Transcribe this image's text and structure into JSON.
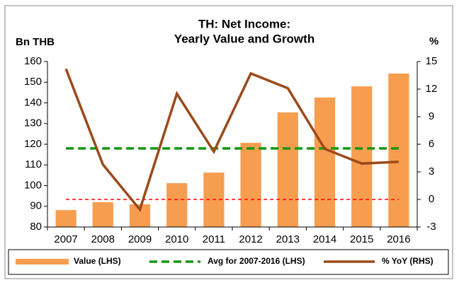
{
  "chart_data": {
    "type": "bar_line",
    "title": [
      "TH: Net Income:",
      "Yearly Value and Growth"
    ],
    "y_label": "Bn THB",
    "y2_label": "%",
    "categories": [
      "2007",
      "2008",
      "2009",
      "2010",
      "2011",
      "2012",
      "2013",
      "2014",
      "2015",
      "2016"
    ],
    "series": [
      {
        "name": "Value (LHS)",
        "type": "bar",
        "axis": "y",
        "color": "#f79d50",
        "values": [
          88.2,
          92,
          91,
          101.2,
          106.3,
          120.7,
          135.4,
          142.6,
          148,
          154.2
        ]
      },
      {
        "name": "Avg for 2007-2016 (LHS)",
        "type": "dashed-line",
        "axis": "y",
        "color": "#109810",
        "values": [
          118,
          118,
          118,
          118,
          118,
          118,
          118,
          118,
          118,
          118
        ]
      },
      {
        "name": "% YoY (RHS)",
        "type": "line",
        "axis": "y2",
        "color": "#9a4a1a",
        "values": [
          14.2,
          3.8,
          -1.1,
          11.5,
          5.2,
          13.7,
          12.1,
          5.5,
          3.9,
          4.1
        ]
      }
    ],
    "reference_lines": [
      {
        "axis": "y2",
        "value": 0,
        "color": "#ff0000"
      }
    ],
    "ylim": [
      80,
      160
    ],
    "yticks": [
      80,
      90,
      100,
      110,
      120,
      130,
      140,
      150,
      160
    ],
    "y2lim": [
      -3,
      15
    ],
    "y2ticks": [
      -3,
      0,
      3,
      6,
      9,
      12,
      15
    ],
    "legend": "bottom"
  }
}
